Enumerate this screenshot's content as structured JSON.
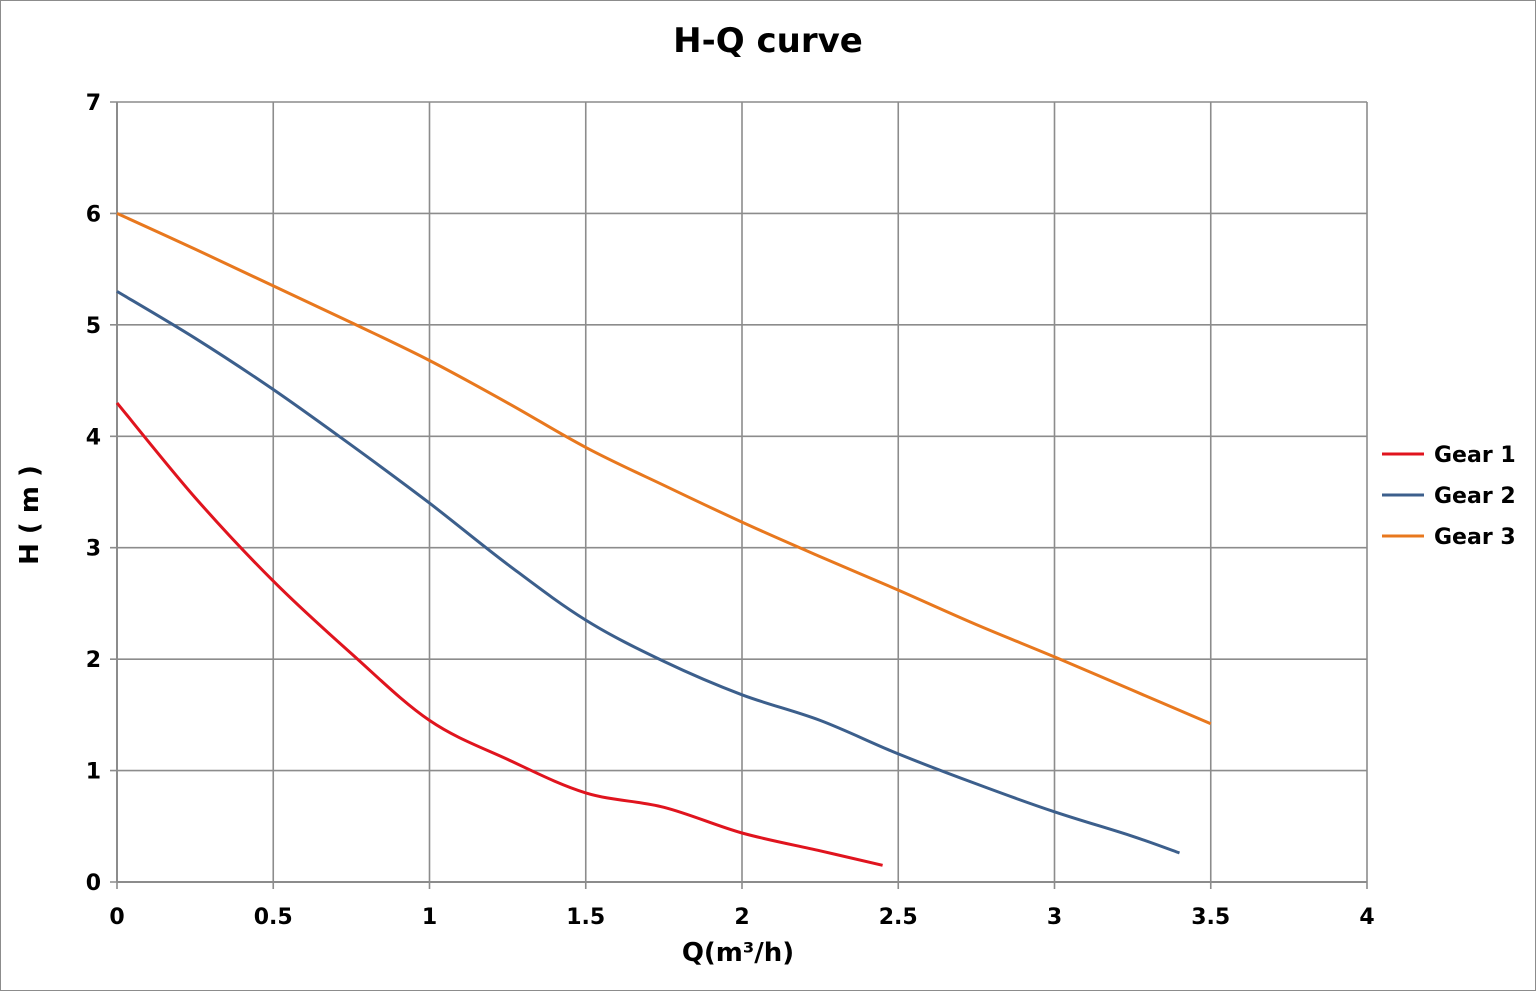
{
  "chart_data": {
    "type": "line",
    "title": "H-Q  curve",
    "xlabel": "Q(m³/h)",
    "ylabel": "H ( m )",
    "xlim": [
      0,
      4
    ],
    "ylim": [
      0,
      7
    ],
    "xticks": [
      "0",
      "0.5",
      "1",
      "1.5",
      "2",
      "2.5",
      "3",
      "3.5",
      "4"
    ],
    "yticks": [
      "0",
      "1",
      "2",
      "3",
      "4",
      "5",
      "6",
      "7"
    ],
    "grid": true,
    "legend_position": "right",
    "series": [
      {
        "name": "Gear 1",
        "color": "#e0141e",
        "x": [
          0,
          0.25,
          0.5,
          0.75,
          1.0,
          1.25,
          1.5,
          1.75,
          2.0,
          2.25,
          2.45
        ],
        "y": [
          4.3,
          3.45,
          2.7,
          2.05,
          1.45,
          1.1,
          0.8,
          0.67,
          0.44,
          0.28,
          0.15
        ]
      },
      {
        "name": "Gear 2",
        "color": "#3c5f8c",
        "x": [
          0,
          0.25,
          0.5,
          0.75,
          1.0,
          1.25,
          1.5,
          1.75,
          2.0,
          2.25,
          2.5,
          2.75,
          3.0,
          3.25,
          3.4
        ],
        "y": [
          5.3,
          4.88,
          4.42,
          3.92,
          3.4,
          2.85,
          2.35,
          1.98,
          1.68,
          1.45,
          1.15,
          0.88,
          0.63,
          0.41,
          0.26
        ]
      },
      {
        "name": "Gear 3",
        "color": "#e8781e",
        "x": [
          0,
          0.25,
          0.5,
          0.75,
          1.0,
          1.25,
          1.5,
          1.75,
          2.0,
          2.25,
          2.5,
          2.75,
          3.0,
          3.25,
          3.5
        ],
        "y": [
          6.0,
          5.68,
          5.35,
          5.02,
          4.68,
          4.3,
          3.9,
          3.56,
          3.23,
          2.92,
          2.62,
          2.31,
          2.02,
          1.72,
          1.42
        ]
      }
    ]
  }
}
